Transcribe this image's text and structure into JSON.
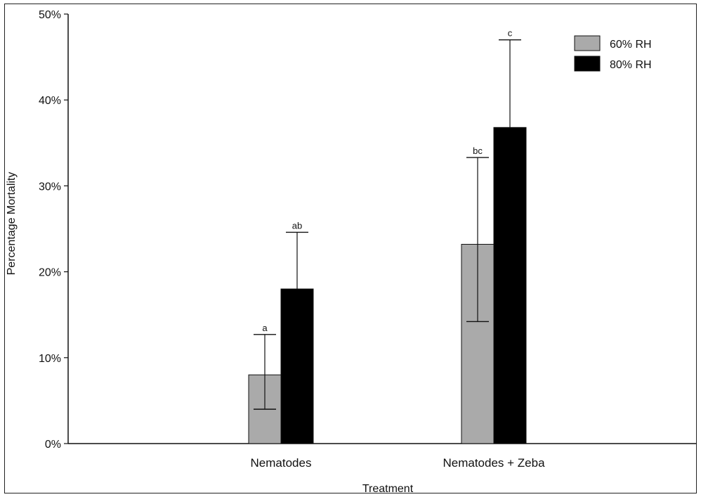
{
  "chart_data": {
    "type": "bar",
    "xlabel": "Treatment",
    "ylabel": "Percentage Mortality",
    "categories": [
      "Nematodes",
      "Nematodes + Zeba"
    ],
    "ylim": [
      0,
      50
    ],
    "yticks": [
      "0%",
      "10%",
      "20%",
      "30%",
      "40%",
      "50%"
    ],
    "legend_position": "top-right",
    "series": [
      {
        "name": "60% RH",
        "color": "#aaaaaa",
        "values": [
          8,
          23.2
        ],
        "error_low": [
          4,
          14.2
        ],
        "error_high": [
          12.7,
          33.3
        ],
        "labels": [
          "a",
          "bc"
        ]
      },
      {
        "name": "80% RH",
        "color": "#000000",
        "values": [
          18,
          36.8
        ],
        "error_low": [
          18,
          36.8
        ],
        "error_high": [
          24.6,
          47
        ],
        "labels": [
          "ab",
          "c"
        ]
      }
    ]
  }
}
